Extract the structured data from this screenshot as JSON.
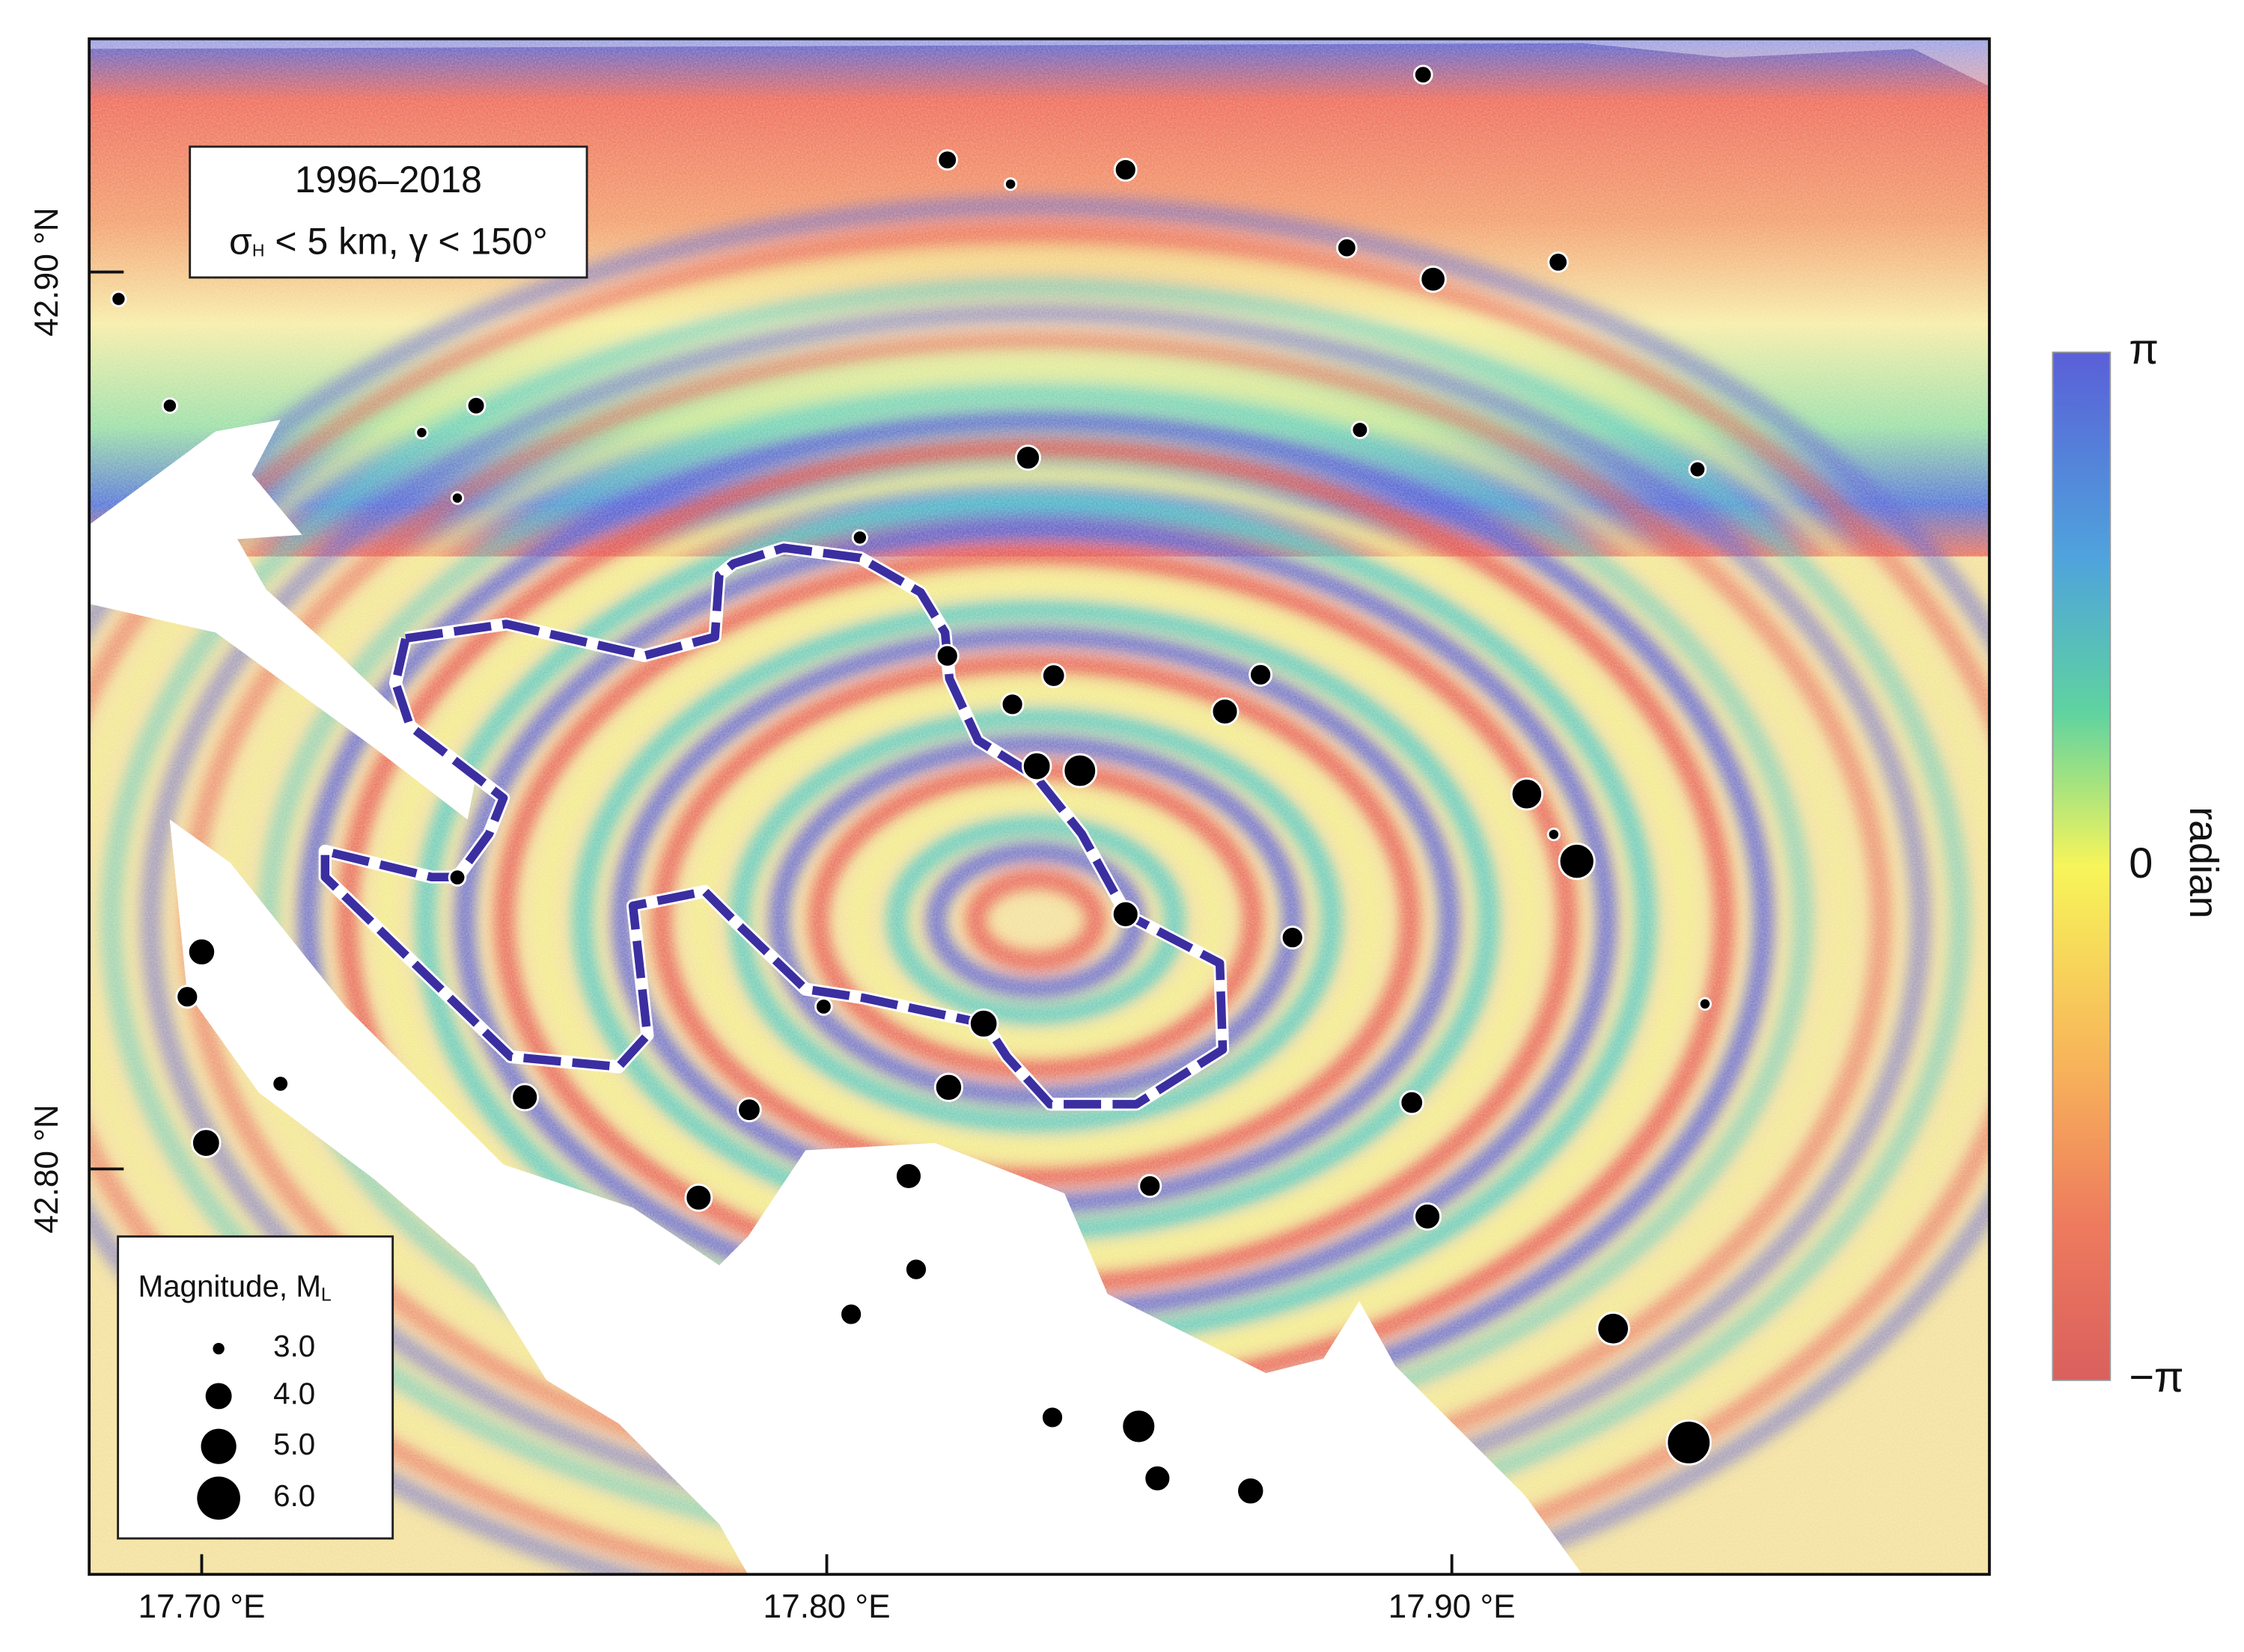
{
  "chart_data": {
    "type": "scatter",
    "x": [
      17.8954,
      17.8193,
      17.8294,
      17.8478,
      17.6867,
      17.8832,
      17.897,
      17.917,
      17.6949,
      17.7352,
      17.7439,
      17.7409,
      17.8853,
      17.8322,
      17.9393,
      17.8053,
      17.8193,
      17.8363,
      17.8694,
      17.8297,
      17.8637,
      17.8336,
      17.8405,
      17.912,
      17.9163,
      17.92,
      17.7409,
      17.8478,
      17.8745,
      17.7,
      17.6977,
      17.7995,
      17.8251,
      17.9405,
      17.7126,
      17.7517,
      17.8195,
      17.7876,
      17.8936,
      17.7007,
      17.8131,
      17.7795,
      17.8517,
      17.8961,
      17.8143,
      17.8039,
      17.9258,
      17.8361,
      17.8499,
      17.9379,
      17.8529,
      17.8678
    ],
    "y": [
      42.922,
      42.9125,
      42.9098,
      42.9114,
      42.897,
      42.9027,
      42.8992,
      42.9011,
      42.8851,
      42.8821,
      42.8851,
      42.8748,
      42.8824,
      42.8793,
      42.878,
      42.8704,
      42.8572,
      42.855,
      42.8551,
      42.8518,
      42.851,
      42.8449,
      42.8444,
      42.8418,
      42.8373,
      42.8343,
      42.8325,
      42.8284,
      42.8258,
      42.8242,
      42.8192,
      42.8181,
      42.8162,
      42.8184,
      42.8095,
      42.808,
      42.8091,
      42.8066,
      42.8074,
      42.8029,
      42.7992,
      42.7968,
      42.7981,
      42.7947,
      42.7888,
      42.7838,
      42.7822,
      42.7723,
      42.7713,
      42.7695,
      42.7655,
      42.7641
    ],
    "size": [
      3.3,
      3.4,
      3.0,
      3.6,
      3.1,
      3.4,
      3.9,
      3.4,
      3.1,
      3.0,
      3.3,
      3.0,
      3.2,
      3.8,
      3.2,
      3.1,
      3.6,
      3.7,
      3.6,
      3.6,
      4.0,
      4.2,
      4.7,
      4.5,
      3.0,
      5.0,
      3.2,
      4.0,
      3.6,
      4.1,
      3.6,
      3.2,
      4.2,
      3.0,
      3.2,
      4.0,
      4.1,
      3.7,
      3.7,
      4.2,
      4.0,
      4.0,
      3.6,
      4.0,
      3.6,
      3.6,
      4.6,
      3.6,
      4.8,
      6.1,
      4.0,
      4.1
    ],
    "color": "#000000",
    "xlim": [
      17.682,
      17.986
    ],
    "ylim": [
      42.7548,
      42.926
    ],
    "xticks": [
      {
        "value": 17.7,
        "label": "17.70 °E"
      },
      {
        "value": 17.8,
        "label": "17.80 °E"
      },
      {
        "value": 17.9,
        "label": "17.90 °E"
      }
    ],
    "yticks": [
      {
        "value": 42.8,
        "label": "42.80 °N"
      },
      {
        "value": 42.9,
        "label": "42.90 °N"
      }
    ],
    "annotation": {
      "period": "1996–2018",
      "sigma": "σ",
      "sigma_sub": "H",
      "criteria": " < 5 km,  γ < 150°"
    },
    "legend": {
      "title": "Magnitude, M",
      "title_sub": "L",
      "sizes": [
        {
          "value": 3,
          "label": "3.0"
        },
        {
          "value": 4,
          "label": "4.0"
        },
        {
          "value": 5,
          "label": "5.0"
        },
        {
          "value": 6,
          "label": "6.0"
        }
      ]
    },
    "colorbar": {
      "label": "radian",
      "clim": [
        -3.1416,
        3.1416
      ],
      "ticks": [
        {
          "value": 3.1416,
          "label": "π"
        },
        0,
        {
          "value": -3.1416,
          "label": "−π"
        }
      ]
    }
  }
}
